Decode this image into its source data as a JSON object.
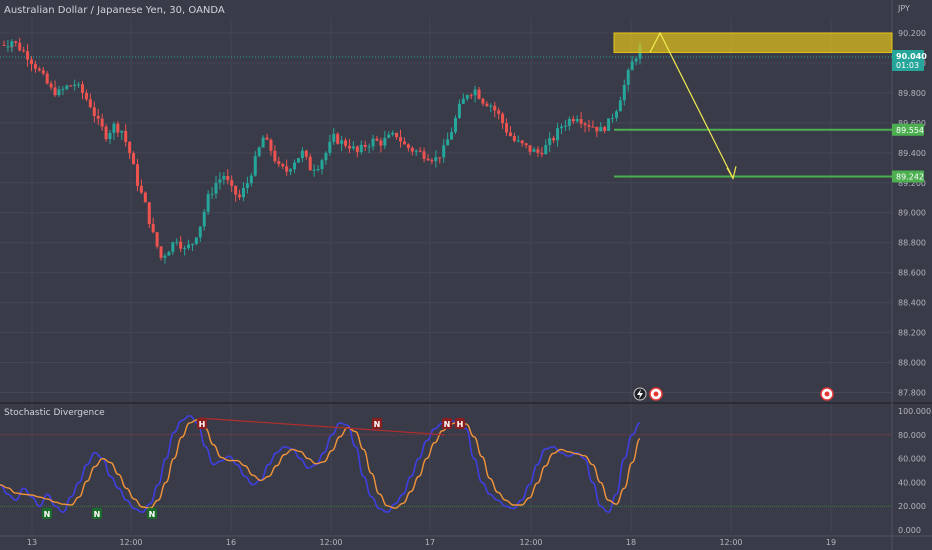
{
  "symbol_title": "Australian Dollar / Japanese Yen, 30, OANDA",
  "indicator_title": "Stochastic Divergence",
  "price_unit": "JPY",
  "price_badge": {
    "price": "90.040",
    "countdown": "01:03"
  },
  "levels": [
    {
      "label": "89.554",
      "value": 89.554
    },
    {
      "label": "89.242",
      "value": 89.242
    }
  ],
  "colors": {
    "background": "#3a3b48",
    "up": "#26a69a",
    "down": "#ef5350",
    "level_line": "#4caf50",
    "zone": "#e6c619",
    "arrow": "#f2e94e",
    "stoch_k": "#3f3fe0",
    "stoch_d": "#f0933a",
    "divergence_line": "#b32d2d"
  },
  "icons": [
    "lightning-icon",
    "target-icon"
  ],
  "chart_data": [
    {
      "type": "candlestick",
      "title": "Australian Dollar / Japanese Yen, 30, OANDA",
      "ylabel": "JPY",
      "ylim": [
        87.75,
        90.3
      ],
      "y_ticks": [
        "90.200",
        "90.000",
        "89.800",
        "89.600",
        "89.400",
        "89.200",
        "89.000",
        "88.800",
        "88.600",
        "88.400",
        "88.200",
        "88.000",
        "87.800"
      ],
      "x_ticks": [
        "13",
        "12:00",
        "16",
        "12:00",
        "17",
        "12:00",
        "18",
        "12:00",
        "19"
      ],
      "current_price": 90.04,
      "horizontal_levels": [
        89.554,
        89.242
      ],
      "resistance_zone": [
        90.07,
        90.2
      ],
      "projection_path": [
        {
          "x": "18 02:00",
          "y": 90.07
        },
        {
          "x": "18 03:00",
          "y": 90.2
        },
        {
          "x": "18 12:00",
          "y": 89.23
        }
      ],
      "price_path": [
        90.12,
        90.15,
        90.1,
        90.05,
        89.98,
        89.9,
        89.82,
        89.8,
        89.84,
        89.86,
        89.8,
        89.72,
        89.6,
        89.52,
        89.58,
        89.55,
        89.4,
        89.2,
        89.05,
        88.85,
        88.7,
        88.76,
        88.83,
        88.75,
        88.8,
        88.92,
        89.1,
        89.2,
        89.25,
        89.15,
        89.1,
        89.2,
        89.35,
        89.5,
        89.42,
        89.3,
        89.28,
        89.35,
        89.4,
        89.3,
        89.32,
        89.4,
        89.5,
        89.47,
        89.45,
        89.4,
        89.45,
        89.48,
        89.47,
        89.5,
        89.52,
        89.45,
        89.42,
        89.4,
        89.38,
        89.36,
        89.42,
        89.55,
        89.7,
        89.8,
        89.82,
        89.75,
        89.72,
        89.65,
        89.55,
        89.48,
        89.45,
        89.42,
        89.4,
        89.44,
        89.5,
        89.58,
        89.62,
        89.65,
        89.6,
        89.58,
        89.55,
        89.6,
        89.7,
        89.85,
        90.0,
        90.1
      ],
      "series": [
        {
          "name": "AUDJPY"
        }
      ]
    },
    {
      "type": "line",
      "title": "Stochastic Divergence",
      "ylim": [
        0,
        100
      ],
      "y_ticks": [
        "100.000",
        "80.000",
        "60.000",
        "40.000",
        "20.000",
        "0.000"
      ],
      "reference_lines": [
        80,
        20
      ],
      "k_values": [
        38,
        30,
        25,
        35,
        28,
        20,
        30,
        20,
        15,
        28,
        40,
        55,
        65,
        60,
        45,
        35,
        25,
        18,
        15,
        22,
        38,
        60,
        82,
        92,
        96,
        90,
        70,
        55,
        58,
        62,
        55,
        45,
        38,
        42,
        55,
        65,
        70,
        68,
        60,
        52,
        55,
        65,
        80,
        90,
        88,
        70,
        45,
        28,
        18,
        15,
        22,
        30,
        45,
        60,
        75,
        85,
        90,
        92,
        90,
        85,
        60,
        40,
        30,
        25,
        20,
        18,
        25,
        38,
        55,
        68,
        70,
        65,
        62,
        65,
        60,
        40,
        20,
        15,
        30,
        60,
        80,
        90
      ],
      "divergence_line": [
        {
          "x": "16 00:00",
          "y": 94
        },
        {
          "x": "17 03:00",
          "y": 80
        }
      ],
      "markers": [
        {
          "label": "H",
          "side": "top",
          "x": "15 12:30",
          "y": 96
        },
        {
          "label": "N",
          "side": "top",
          "x": "16 09:30",
          "y": 84
        },
        {
          "label": "N",
          "side": "top",
          "x": "17 03:00",
          "y": 82
        },
        {
          "label": "H",
          "side": "top",
          "x": "17 04:30",
          "y": 83
        },
        {
          "label": "N",
          "side": "bottom",
          "x": "13 03:00",
          "y": 18
        },
        {
          "label": "N",
          "side": "bottom",
          "x": "13 07:30",
          "y": 18
        },
        {
          "label": "N",
          "side": "bottom",
          "x": "13 13:00",
          "y": 12
        }
      ]
    }
  ]
}
